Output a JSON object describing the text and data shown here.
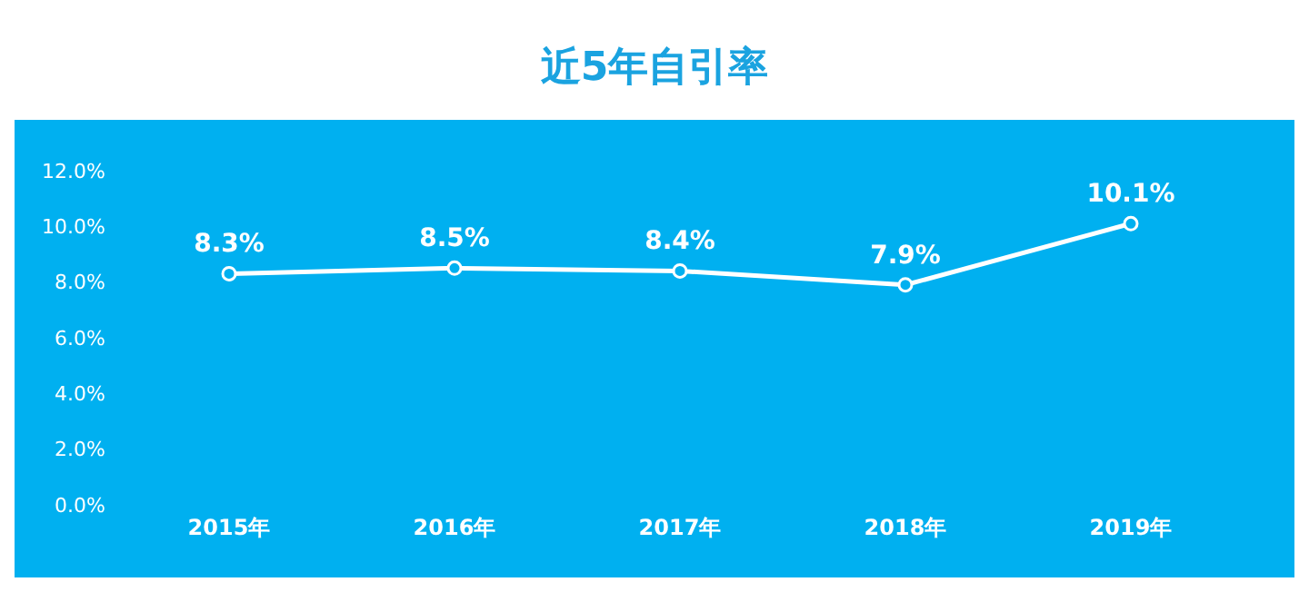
{
  "chart_data": {
    "type": "line",
    "title": "近5年自引率",
    "categories": [
      "2015年",
      "2016年",
      "2017年",
      "2018年",
      "2019年"
    ],
    "series": [
      {
        "color": "#ffffff",
        "values": [
          8.3,
          8.5,
          8.4,
          7.9,
          10.1
        ],
        "value_labels": [
          "8.3%",
          "8.5%",
          "8.4%",
          "7.9%",
          "10.1%"
        ]
      }
    ],
    "ylim": [
      0,
      12
    ],
    "yticks": [
      {
        "value": 0,
        "label": "0.0%"
      },
      {
        "value": 2,
        "label": "2.0%"
      },
      {
        "value": 4,
        "label": "4.0%"
      },
      {
        "value": 6,
        "label": "6.0%"
      },
      {
        "value": 8,
        "label": "8.0%"
      },
      {
        "value": 10,
        "label": "10.0%"
      },
      {
        "value": 12,
        "label": "12.0%"
      }
    ],
    "grid": false,
    "legend": false,
    "marker": "circle",
    "line_style": "solid"
  }
}
